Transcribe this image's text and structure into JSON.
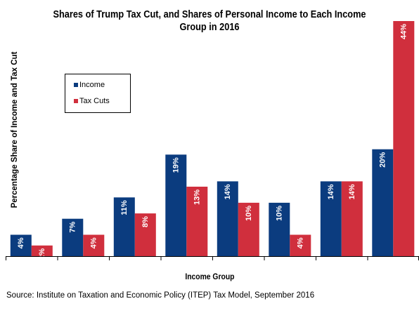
{
  "title_lines": [
    "Shares of Trump Tax Cut, and Shares of Personal Income to Each Income",
    "Group in 2016"
  ],
  "source": "Source:  Institute  on Taxation and Economic Policy (ITEP) Tax Model, September  2016",
  "colors": {
    "income": "#0b3c7f",
    "tax_cuts": "#d02f3d"
  },
  "chart_data": {
    "type": "bar",
    "title": "Shares of Trump Tax Cut, and Shares of Personal Income to Each Income Group in 2016",
    "xlabel": "Income Group",
    "ylabel": "Percentage Share of Income and Tax Cut",
    "categories": [
      "",
      "",
      "",
      "",
      "",
      "",
      "",
      ""
    ],
    "series": [
      {
        "name": "Income",
        "values": [
          4,
          7,
          11,
          19,
          14,
          10,
          14,
          20
        ],
        "labels": [
          "4%",
          "7%",
          "11%",
          "19%",
          "14%",
          "10%",
          "14%",
          "20%"
        ]
      },
      {
        "name": "Tax Cuts",
        "values": [
          2,
          4,
          8,
          13,
          10,
          4,
          14,
          44
        ],
        "labels": [
          "2%",
          "4%",
          "8%",
          "13%",
          "10%",
          "4%",
          "14%",
          "44%"
        ]
      }
    ],
    "ylim": [
      0,
      44
    ],
    "grid": false,
    "legend_position": "upper-left"
  }
}
